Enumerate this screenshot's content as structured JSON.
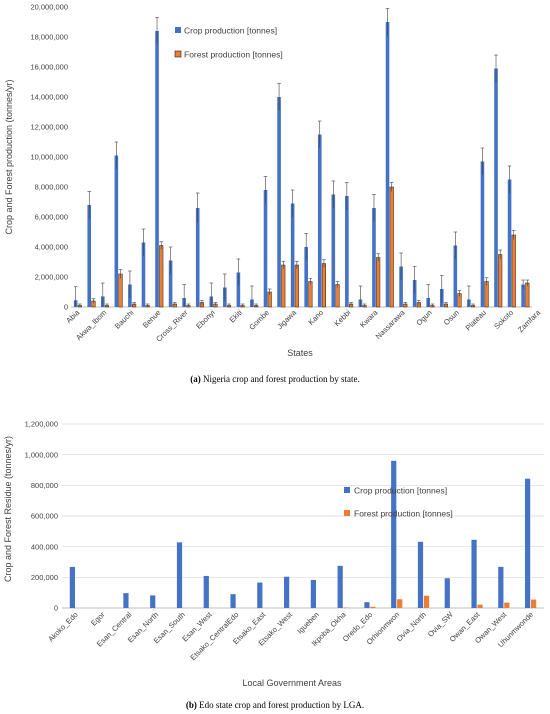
{
  "colors": {
    "crop": "#4472C4",
    "forest": "#ED7D31",
    "grid": "#D9D9D9",
    "axis": "#BFBFBF",
    "err": "#404040"
  },
  "captions": {
    "a_label": "(a)",
    "a_text": " Nigeria crop and forest production by state.",
    "b_label": "(b)",
    "b_text": " Edo state crop and forest production by LGA."
  },
  "chart_data": [
    {
      "type": "bar",
      "title": "",
      "xlabel": "States",
      "ylabel": "Crop and Forest production (tonnes/yr)",
      "ylim": [
        0,
        20000000
      ],
      "yticks": [
        "0",
        "2,000,000",
        "4,000,000",
        "6,000,000",
        "8,000,000",
        "10,000,000",
        "12,000,000",
        "14,000,000",
        "16,000,000",
        "18,000,000",
        "20,000,000"
      ],
      "legend_position": "top-left",
      "grid": false,
      "error_bars": true,
      "labeled_categories": [
        "Abia",
        "Akwa_Ibom",
        "Bauchi",
        "Benue",
        "Cross_River",
        "Ebonyi",
        "Ekiti",
        "Gombe",
        "Jigawa",
        "Kano",
        "Kebbi",
        "Kwara",
        "Nassarawa",
        "Ogun",
        "Osun",
        "Plateau",
        "Sokoto",
        "Zamfara"
      ],
      "series": [
        {
          "name": "Crop production [tonnes]",
          "values": [
            450000,
            6800000,
            700000,
            10100000,
            1500000,
            4300000,
            18400000,
            3100000,
            600000,
            6600000,
            700000,
            1300000,
            2300000,
            500000,
            7800000,
            14000000,
            6900000,
            4000000,
            11500000,
            7500000,
            7400000,
            500000,
            6600000,
            19000000,
            2700000,
            1800000,
            600000,
            1200000,
            4100000,
            500000,
            9700000,
            15900000,
            8500000,
            1500000
          ],
          "errors": [
            900000,
            900000,
            900000,
            900000,
            900000,
            900000,
            900000,
            900000,
            900000,
            1000000,
            900000,
            900000,
            900000,
            900000,
            900000,
            900000,
            900000,
            900000,
            900000,
            900000,
            900000,
            900000,
            900000,
            900000,
            900000,
            900000,
            900000,
            900000,
            900000,
            900000,
            900000,
            900000,
            900000,
            300000
          ]
        },
        {
          "name": "Forest production [tonnes]",
          "values": [
            100000,
            400000,
            100000,
            2200000,
            200000,
            100000,
            4100000,
            200000,
            100000,
            300000,
            200000,
            100000,
            100000,
            100000,
            1000000,
            2800000,
            2800000,
            1700000,
            2900000,
            1500000,
            200000,
            100000,
            3300000,
            8000000,
            200000,
            300000,
            100000,
            200000,
            900000,
            100000,
            1700000,
            3500000,
            4800000,
            1600000
          ],
          "errors": [
            100000,
            150000,
            100000,
            300000,
            100000,
            100000,
            250000,
            100000,
            100000,
            150000,
            100000,
            100000,
            100000,
            100000,
            200000,
            250000,
            250000,
            200000,
            250000,
            200000,
            100000,
            100000,
            250000,
            300000,
            100000,
            150000,
            100000,
            100000,
            200000,
            100000,
            250000,
            300000,
            300000,
            200000
          ]
        }
      ]
    },
    {
      "type": "bar",
      "title": "",
      "xlabel": "Local Government Areas",
      "ylabel": "Crop and Forest Residue (tonnes/yr)",
      "ylim": [
        0,
        1200000
      ],
      "yticks": [
        "0",
        "200,000",
        "400,000",
        "600,000",
        "800,000",
        "1,000,000",
        "1,200,000"
      ],
      "legend_position": "top-center",
      "grid": true,
      "categories": [
        "Akoko_Edo",
        "Egor",
        "Esan_Central",
        "Esan_North",
        "Esan_South",
        "Esan_West",
        "Etsako_CentralEdo",
        "Etsako_East",
        "Etsako_West",
        "Igueben",
        "Ikpoba_Okha",
        "Oredo_Edo",
        "Orhionmwon",
        "Ovia_North",
        "Ovia_SW",
        "Owan_East",
        "Owan_West",
        "Uhunmwonde"
      ],
      "series": [
        {
          "name": "Crop production [tonnes]",
          "values": [
            268000,
            0,
            97000,
            82000,
            428000,
            209000,
            90000,
            166000,
            204000,
            183000,
            275000,
            38000,
            960000,
            432000,
            194000,
            445000,
            268000,
            843000
          ]
        },
        {
          "name": "Forest production [tonnes]",
          "values": [
            0,
            0,
            0,
            0,
            0,
            0,
            0,
            0,
            0,
            0,
            3000,
            8000,
            57000,
            80000,
            0,
            22000,
            35000,
            55000
          ]
        }
      ]
    }
  ]
}
